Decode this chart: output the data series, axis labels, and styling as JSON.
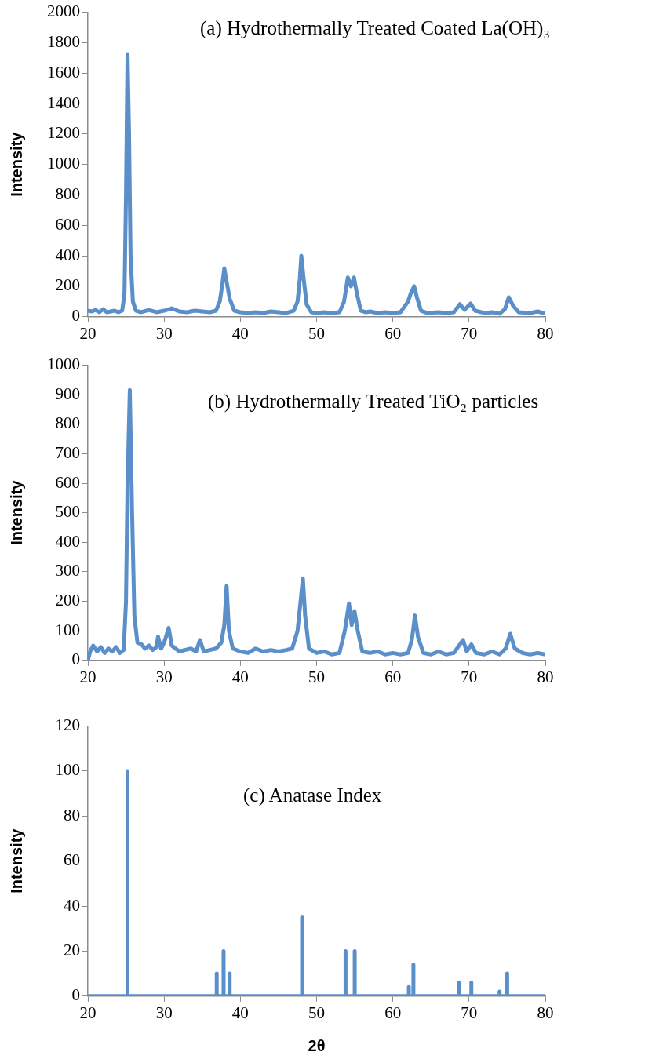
{
  "chart_data": [
    {
      "type": "line",
      "title": "(a)  Hydrothermally Treated Coated La(OH)₃",
      "ylabel": "Intensity",
      "xlim": [
        20,
        80
      ],
      "xticks": [
        20,
        30,
        40,
        50,
        60,
        70,
        80
      ],
      "ylim": [
        0,
        2000
      ],
      "yticks": [
        0,
        200,
        400,
        600,
        800,
        1000,
        1200,
        1400,
        1600,
        1800,
        2000
      ],
      "grid": false,
      "marker": "none",
      "x": [
        20,
        20.5,
        21,
        21.5,
        22,
        22.5,
        23,
        23.5,
        24,
        24.5,
        24.8,
        25.0,
        25.2,
        25.4,
        25.6,
        25.9,
        26.3,
        27,
        28,
        29,
        30,
        31,
        32,
        33,
        34,
        35,
        36,
        36.8,
        37.3,
        37.6,
        37.9,
        38.2,
        38.6,
        39.2,
        40,
        41,
        42,
        43,
        44,
        45,
        46,
        47,
        47.5,
        47.8,
        48.0,
        48.3,
        48.7,
        49.3,
        50,
        51,
        52,
        53,
        53.6,
        54.1,
        54.5,
        54.9,
        55.3,
        55.8,
        56.5,
        57,
        58,
        59,
        60,
        61,
        62,
        62.4,
        62.8,
        63.2,
        63.7,
        64.5,
        66,
        67,
        68,
        68.8,
        69.4,
        70.2,
        70.8,
        72,
        73,
        74,
        74.7,
        75.2,
        75.8,
        76.5,
        78,
        79,
        80
      ],
      "series": [
        {
          "color": "#5b8fc9",
          "values": [
            40,
            35,
            45,
            30,
            50,
            30,
            35,
            40,
            30,
            40,
            150,
            800,
            1725,
            1200,
            400,
            100,
            40,
            30,
            45,
            30,
            40,
            55,
            35,
            30,
            40,
            35,
            30,
            40,
            100,
            200,
            318,
            230,
            120,
            40,
            30,
            25,
            30,
            25,
            35,
            30,
            25,
            40,
            100,
            250,
            401,
            250,
            80,
            30,
            25,
            30,
            25,
            30,
            100,
            258,
            200,
            258,
            150,
            40,
            30,
            35,
            25,
            30,
            25,
            30,
            100,
            160,
            200,
            120,
            40,
            25,
            30,
            25,
            30,
            83,
            45,
            87,
            40,
            25,
            30,
            20,
            50,
            128,
            70,
            30,
            25,
            35,
            20
          ]
        }
      ]
    },
    {
      "type": "line",
      "title": "(b)  Hydrothermally Treated TiO₂ particles",
      "ylabel": "Intensity",
      "xlim": [
        20,
        80
      ],
      "xticks": [
        20,
        30,
        40,
        50,
        60,
        70,
        80
      ],
      "ylim": [
        0,
        1000
      ],
      "yticks": [
        0,
        100,
        200,
        300,
        400,
        500,
        600,
        700,
        800,
        900,
        1000
      ],
      "grid": false,
      "marker": "none",
      "x": [
        20,
        20.3,
        20.7,
        21.2,
        21.7,
        22.2,
        22.7,
        23.2,
        23.7,
        24.2,
        24.7,
        25.0,
        25.2,
        25.5,
        25.8,
        26.1,
        26.5,
        27,
        27.5,
        28,
        28.5,
        29,
        29.2,
        29.6,
        30,
        30.6,
        31,
        31.5,
        32,
        32.7,
        33.5,
        34.2,
        34.7,
        35.2,
        36,
        36.8,
        37.5,
        37.9,
        38.2,
        38.5,
        39,
        40,
        41,
        42,
        43,
        44,
        45,
        46,
        46.8,
        47.5,
        47.9,
        48.2,
        48.5,
        49,
        50,
        51,
        52,
        53,
        53.7,
        54.25,
        54.6,
        54.97,
        55.4,
        56,
        57,
        58,
        59,
        60,
        61,
        62,
        62.5,
        62.9,
        63.3,
        64,
        65,
        66,
        67,
        68,
        69.2,
        69.7,
        70.3,
        70.9,
        72,
        73,
        74,
        74.8,
        75.4,
        76,
        77,
        78,
        79,
        80
      ],
      "series": [
        {
          "color": "#5b8fc9",
          "values": [
            0,
            30,
            50,
            30,
            45,
            25,
            40,
            30,
            45,
            25,
            35,
            200,
            600,
            916,
            500,
            150,
            60,
            55,
            40,
            50,
            35,
            45,
            80,
            40,
            60,
            110,
            50,
            40,
            30,
            35,
            40,
            30,
            69,
            30,
            35,
            40,
            60,
            120,
            252,
            100,
            40,
            30,
            25,
            40,
            30,
            35,
            30,
            35,
            40,
            100,
            200,
            278,
            150,
            40,
            25,
            30,
            20,
            25,
            100,
            193,
            120,
            167,
            100,
            30,
            25,
            30,
            20,
            25,
            20,
            25,
            70,
            152,
            80,
            25,
            20,
            30,
            20,
            25,
            69,
            30,
            54,
            25,
            20,
            30,
            20,
            40,
            90,
            40,
            25,
            20,
            25,
            20
          ]
        }
      ]
    },
    {
      "type": "line",
      "title": "(c)  Anatase Index",
      "xlabel": "2θ",
      "ylabel": "Intensity",
      "xlim": [
        20,
        80
      ],
      "xticks": [
        20,
        30,
        40,
        50,
        60,
        70,
        80
      ],
      "ylim": [
        0,
        120
      ],
      "yticks": [
        0,
        20,
        40,
        60,
        80,
        100,
        120
      ],
      "grid": false,
      "marker": "none",
      "x": [
        20,
        25.2,
        25.2,
        25.2,
        36.9,
        36.9,
        36.9,
        37.8,
        37.8,
        37.8,
        38.6,
        38.6,
        38.6,
        48.1,
        48.1,
        48.1,
        53.8,
        53.8,
        53.8,
        55.0,
        55.0,
        55.0,
        62.1,
        62.1,
        62.1,
        62.7,
        62.7,
        62.7,
        68.7,
        68.7,
        68.7,
        70.3,
        70.3,
        70.3,
        74.0,
        74.0,
        74.0,
        75.0,
        75.0,
        75.0,
        80
      ],
      "series": [
        {
          "color": "#5b8fc9",
          "values": [
            0,
            0,
            100,
            0,
            0,
            10,
            0,
            0,
            20,
            0,
            0,
            10,
            0,
            0,
            35,
            0,
            0,
            20,
            0,
            0,
            20,
            0,
            0,
            4,
            0,
            0,
            14,
            0,
            0,
            6,
            0,
            0,
            6,
            0,
            0,
            2,
            0,
            0,
            10,
            0,
            0
          ]
        }
      ]
    }
  ]
}
